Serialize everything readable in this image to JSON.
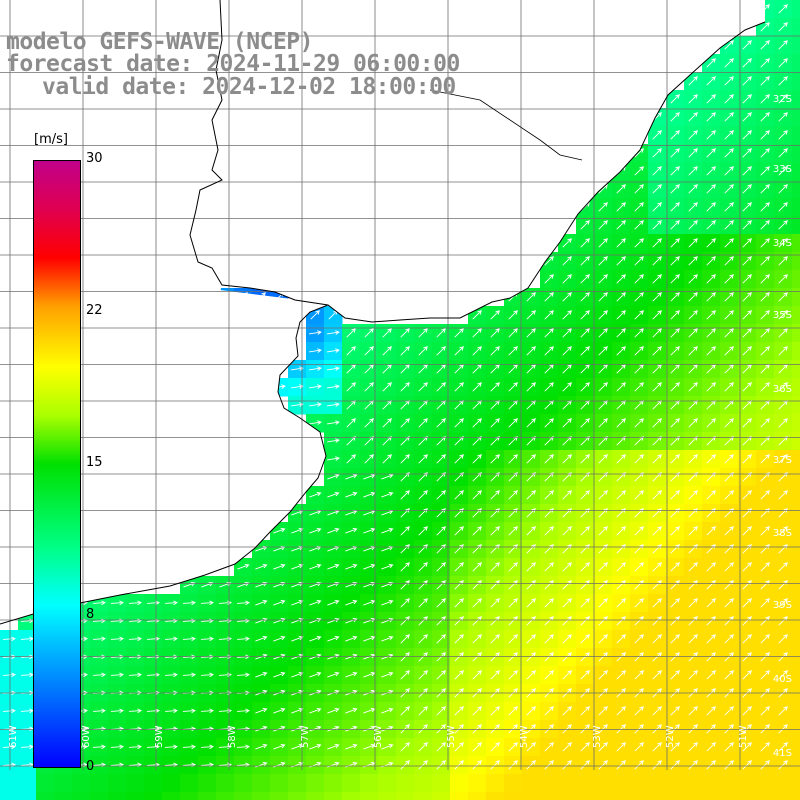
{
  "titles": {
    "line1": "modelo GEFS-WAVE (NCEP)",
    "line2": "forecast date: 2024-11-29 06:00:00",
    "line3": "valid date: 2024-12-02 18:00:00"
  },
  "colorbar": {
    "unit": "[m/s]",
    "ticks": [
      "30",
      "22",
      "15",
      "8",
      "0"
    ],
    "range": [
      0,
      30
    ],
    "stops": [
      {
        "value": 0,
        "color": "#0000ff"
      },
      {
        "value": 5.5,
        "color": "#00aaff"
      },
      {
        "value": 8,
        "color": "#00ffff"
      },
      {
        "value": 11,
        "color": "#00ff88"
      },
      {
        "value": 15,
        "color": "#00e000"
      },
      {
        "value": 17.5,
        "color": "#aaff00"
      },
      {
        "value": 20,
        "color": "#ffff00"
      },
      {
        "value": 23,
        "color": "#ffa000"
      },
      {
        "value": 25,
        "color": "#ff0000"
      },
      {
        "value": 27.5,
        "color": "#e00050"
      },
      {
        "value": 30,
        "color": "#c0008a"
      }
    ]
  },
  "map": {
    "lat_labels": [
      "32S",
      "33S",
      "34S",
      "35S",
      "36S",
      "37S",
      "38S",
      "39S",
      "40S",
      "41S"
    ],
    "lon_labels": [
      "61W",
      "60W",
      "59W",
      "58W",
      "57W",
      "56W",
      "55W",
      "54W",
      "53W",
      "52W",
      "51W"
    ],
    "land_color": "#ffffff",
    "grid_color": "#6e6e6e",
    "arrow_color": "#ffffff"
  }
}
